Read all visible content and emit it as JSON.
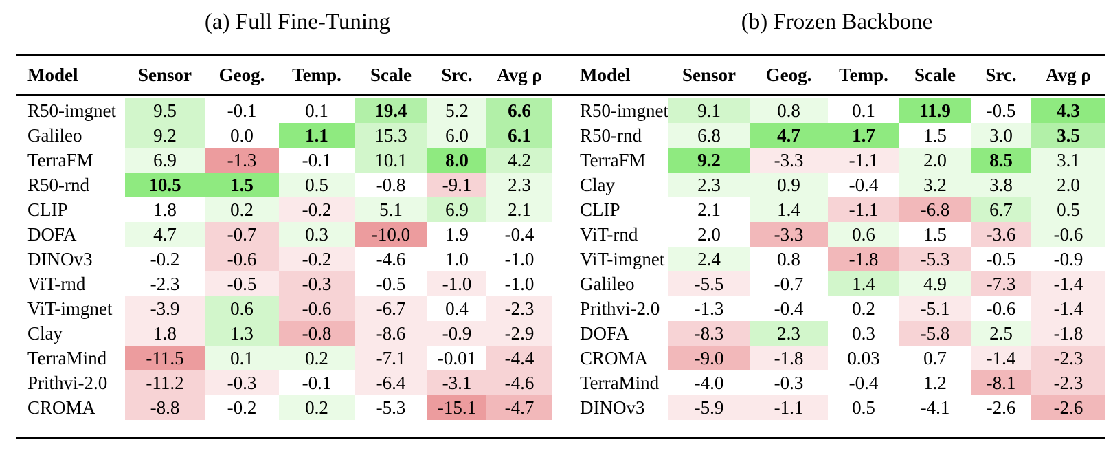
{
  "full_fine_tuning": {
    "caption": "(a) Full Fine-Tuning",
    "headers": [
      "Model",
      "Sensor",
      "Geog.",
      "Temp.",
      "Scale",
      "Src.",
      "Avg ρ"
    ],
    "rows": [
      {
        "model": "R50-imgnet",
        "values": [
          "9.5",
          "-0.1",
          "0.1",
          "19.4",
          "5.2",
          "6.6"
        ],
        "shades": [
          "g2",
          "",
          "",
          "g3",
          "g1",
          "g3"
        ],
        "bold": [
          false,
          false,
          false,
          true,
          false,
          true
        ]
      },
      {
        "model": "Galileo",
        "values": [
          "9.2",
          "0.0",
          "1.1",
          "15.3",
          "6.0",
          "6.1"
        ],
        "shades": [
          "g2",
          "",
          "g4",
          "g2",
          "g1",
          "g3"
        ],
        "bold": [
          false,
          false,
          true,
          false,
          false,
          true
        ]
      },
      {
        "model": "TerraFM",
        "values": [
          "6.9",
          "-1.3",
          "-0.1",
          "10.1",
          "8.0",
          "4.2"
        ],
        "shades": [
          "g1",
          "r4",
          "",
          "g2",
          "g4",
          "g2"
        ],
        "bold": [
          false,
          false,
          false,
          false,
          true,
          false
        ]
      },
      {
        "model": "R50-rnd",
        "values": [
          "10.5",
          "1.5",
          "0.5",
          "-0.8",
          "-9.1",
          "2.3"
        ],
        "shades": [
          "g4",
          "g4",
          "g1",
          "",
          "r2",
          "g1"
        ],
        "bold": [
          true,
          true,
          false,
          false,
          false,
          false
        ]
      },
      {
        "model": "CLIP",
        "values": [
          "1.8",
          "0.2",
          "-0.2",
          "5.1",
          "6.9",
          "2.1"
        ],
        "shades": [
          "",
          "g1",
          "r1",
          "g1",
          "g2",
          "g1"
        ],
        "bold": [
          false,
          false,
          false,
          false,
          false,
          false
        ]
      },
      {
        "model": "DOFA",
        "values": [
          "4.7",
          "-0.7",
          "0.3",
          "-10.0",
          "1.9",
          "-0.4"
        ],
        "shades": [
          "g1",
          "r2",
          "g1",
          "r4",
          "",
          ""
        ],
        "bold": [
          false,
          false,
          false,
          false,
          false,
          false
        ]
      },
      {
        "model": "DINOv3",
        "values": [
          "-0.2",
          "-0.6",
          "-0.2",
          "-4.6",
          "1.0",
          "-1.0"
        ],
        "shades": [
          "",
          "r2",
          "r1",
          "",
          "",
          ""
        ],
        "bold": [
          false,
          false,
          false,
          false,
          false,
          false
        ]
      },
      {
        "model": "ViT-rnd",
        "values": [
          "-2.3",
          "-0.5",
          "-0.3",
          "-0.5",
          "-1.0",
          "-1.0"
        ],
        "shades": [
          "",
          "r1",
          "r2",
          "",
          "r1",
          ""
        ],
        "bold": [
          false,
          false,
          false,
          false,
          false,
          false
        ]
      },
      {
        "model": "ViT-imgnet",
        "values": [
          "-3.9",
          "0.6",
          "-0.6",
          "-6.7",
          "0.4",
          "-2.3"
        ],
        "shades": [
          "r1",
          "g2",
          "r2",
          "r1",
          "",
          "r1"
        ],
        "bold": [
          false,
          false,
          false,
          false,
          false,
          false
        ]
      },
      {
        "model": "Clay",
        "values": [
          "1.8",
          "1.3",
          "-0.8",
          "-8.6",
          "-0.9",
          "-2.9"
        ],
        "shades": [
          "r1",
          "g2",
          "r3",
          "r1",
          "r1",
          "r1"
        ],
        "bold": [
          false,
          false,
          false,
          false,
          false,
          false
        ]
      },
      {
        "model": "TerraMind",
        "values": [
          "-11.5",
          "0.1",
          "0.2",
          "-7.1",
          "-0.01",
          "-4.4"
        ],
        "shades": [
          "r4",
          "g1",
          "g1",
          "r1",
          "",
          "r2"
        ],
        "bold": [
          false,
          false,
          false,
          false,
          false,
          false
        ]
      },
      {
        "model": "Prithvi-2.0",
        "values": [
          "-11.2",
          "-0.3",
          "-0.1",
          "-6.4",
          "-3.1",
          "-4.6"
        ],
        "shades": [
          "r2",
          "r1",
          "",
          "r1",
          "r2",
          "r2"
        ],
        "bold": [
          false,
          false,
          false,
          false,
          false,
          false
        ]
      },
      {
        "model": "CROMA",
        "values": [
          "-8.8",
          "-0.2",
          "0.2",
          "-5.3",
          "-15.1",
          "-4.7"
        ],
        "shades": [
          "r2",
          "",
          "g1",
          "",
          "r4",
          "r3"
        ],
        "bold": [
          false,
          false,
          false,
          false,
          false,
          false
        ]
      }
    ]
  },
  "frozen_backbone": {
    "caption": "(b) Frozen Backbone",
    "headers": [
      "Model",
      "Sensor",
      "Geog.",
      "Temp.",
      "Scale",
      "Src.",
      "Avg ρ"
    ],
    "rows": [
      {
        "model": "R50-imgnet",
        "values": [
          "9.1",
          "0.8",
          "0.1",
          "11.9",
          "-0.5",
          "4.3"
        ],
        "shades": [
          "g2",
          "g1",
          "",
          "g4",
          "",
          "g4"
        ],
        "bold": [
          false,
          false,
          false,
          true,
          false,
          true
        ]
      },
      {
        "model": "R50-rnd",
        "values": [
          "6.8",
          "4.7",
          "1.7",
          "1.5",
          "3.0",
          "3.5"
        ],
        "shades": [
          "g1",
          "g4",
          "g4",
          "",
          "g1",
          "g3"
        ],
        "bold": [
          false,
          true,
          true,
          false,
          false,
          true
        ]
      },
      {
        "model": "TerraFM",
        "values": [
          "9.2",
          "-3.3",
          "-1.1",
          "2.0",
          "8.5",
          "3.1"
        ],
        "shades": [
          "g4",
          "r1",
          "r1",
          "g1",
          "g4",
          "g1"
        ],
        "bold": [
          true,
          false,
          false,
          false,
          true,
          false
        ]
      },
      {
        "model": "Clay",
        "values": [
          "2.3",
          "0.9",
          "-0.4",
          "3.2",
          "3.8",
          "2.0"
        ],
        "shades": [
          "g1",
          "g1",
          "",
          "g1",
          "g1",
          "g1"
        ],
        "bold": [
          false,
          false,
          false,
          false,
          false,
          false
        ]
      },
      {
        "model": "CLIP",
        "values": [
          "2.1",
          "1.4",
          "-1.1",
          "-6.8",
          "6.7",
          "0.5"
        ],
        "shades": [
          "",
          "g1",
          "r2",
          "r3",
          "g2",
          "g1"
        ],
        "bold": [
          false,
          false,
          false,
          false,
          false,
          false
        ]
      },
      {
        "model": "ViT-rnd",
        "values": [
          "2.0",
          "-3.3",
          "0.6",
          "1.5",
          "-3.6",
          "-0.6"
        ],
        "shades": [
          "",
          "r3",
          "g1",
          "",
          "r2",
          "g1"
        ],
        "bold": [
          false,
          false,
          false,
          false,
          false,
          false
        ]
      },
      {
        "model": "ViT-imgnet",
        "values": [
          "2.4",
          "0.8",
          "-1.8",
          "-5.3",
          "-0.5",
          "-0.9"
        ],
        "shades": [
          "g1",
          "",
          "r3",
          "r2",
          "",
          ""
        ],
        "bold": [
          false,
          false,
          false,
          false,
          false,
          false
        ]
      },
      {
        "model": "Galileo",
        "values": [
          "-5.5",
          "-0.7",
          "1.4",
          "4.9",
          "-7.3",
          "-1.4"
        ],
        "shades": [
          "r1",
          "",
          "g2",
          "g1",
          "r2",
          "r1"
        ],
        "bold": [
          false,
          false,
          false,
          false,
          false,
          false
        ]
      },
      {
        "model": "Prithvi-2.0",
        "values": [
          "-1.3",
          "-0.4",
          "0.2",
          "-5.1",
          "-0.6",
          "-1.4"
        ],
        "shades": [
          "",
          "",
          "",
          "r1",
          "",
          "r1"
        ],
        "bold": [
          false,
          false,
          false,
          false,
          false,
          false
        ]
      },
      {
        "model": "DOFA",
        "values": [
          "-8.3",
          "2.3",
          "0.3",
          "-5.8",
          "2.5",
          "-1.8"
        ],
        "shades": [
          "r2",
          "g2",
          "",
          "r2",
          "g1",
          "r1"
        ],
        "bold": [
          false,
          false,
          false,
          false,
          false,
          false
        ]
      },
      {
        "model": "CROMA",
        "values": [
          "-9.0",
          "-1.8",
          "0.03",
          "0.7",
          "-1.4",
          "-2.3"
        ],
        "shades": [
          "r3",
          "r1",
          "",
          "",
          "r1",
          "r2"
        ],
        "bold": [
          false,
          false,
          false,
          false,
          false,
          false
        ]
      },
      {
        "model": "TerraMind",
        "values": [
          "-4.0",
          "-0.3",
          "-0.4",
          "1.2",
          "-8.1",
          "-2.3"
        ],
        "shades": [
          "",
          "",
          "",
          "",
          "r3",
          "r2"
        ],
        "bold": [
          false,
          false,
          false,
          false,
          false,
          false
        ]
      },
      {
        "model": "DINOv3",
        "values": [
          "-5.9",
          "-1.1",
          "0.5",
          "-4.1",
          "-2.6",
          "-2.6"
        ],
        "shades": [
          "r1",
          "r1",
          "",
          "",
          "",
          "r3"
        ],
        "bold": [
          false,
          false,
          false,
          false,
          false,
          false
        ]
      }
    ]
  }
}
